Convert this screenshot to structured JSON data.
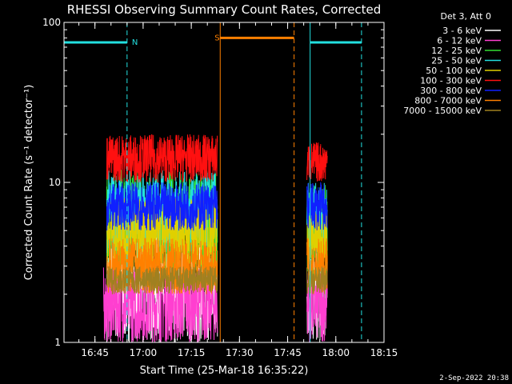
{
  "chart_data": {
    "type": "line",
    "title": "RHESSI Observing Summary Count Rates, Corrected",
    "xlabel": "Start Time (25-Mar-18 16:35:22)",
    "ylabel": "Corrected Count Rate (s⁻¹ detector⁻¹)",
    "yscale": "log",
    "ylim": [
      1,
      100
    ],
    "xlim": [
      "16:35:22",
      "18:15:00"
    ],
    "x_ticks": [
      "16:45",
      "17:00",
      "17:15",
      "17:30",
      "17:45",
      "18:00",
      "18:15"
    ],
    "y_ticks": [
      "1",
      "10",
      "100"
    ],
    "grid": false,
    "legend_position": "outside-right",
    "legend_title": "Det 3, Att 0",
    "series": [
      {
        "name": "3 - 6 keV",
        "color": "#ffffff",
        "segments": [
          {
            "x_start": "16:48:40",
            "x_end": "17:23:10",
            "y_min": 1.0,
            "y_max": 5.0
          },
          {
            "x_start": "17:51:00",
            "x_end": "17:57:20",
            "y_min": 1.0,
            "y_max": 4.0
          }
        ]
      },
      {
        "name": "6 - 12 keV",
        "color": "#ff3fd0",
        "segments": [
          {
            "x_start": "16:47:40",
            "x_end": "17:23:10",
            "y_min": 1.0,
            "y_max": 3.0
          },
          {
            "x_start": "17:51:00",
            "x_end": "17:57:20",
            "y_min": 1.0,
            "y_max": 3.0
          }
        ]
      },
      {
        "name": "12 - 25 keV",
        "color": "#33dd33",
        "segments": [
          {
            "x_start": "16:48:40",
            "x_end": "17:23:10",
            "y_min": 2.5,
            "y_max": 12.0
          },
          {
            "x_start": "17:51:00",
            "x_end": "17:57:20",
            "y_min": 2.5,
            "y_max": 10.0
          }
        ]
      },
      {
        "name": "25 - 50 keV",
        "color": "#22e0e0",
        "segments": [
          {
            "x_start": "16:48:40",
            "x_end": "17:23:10",
            "y_min": 3.5,
            "y_max": 12.0
          },
          {
            "x_start": "17:51:00",
            "x_end": "17:57:20",
            "y_min": 3.5,
            "y_max": 10.0
          }
        ]
      },
      {
        "name": "50 - 100 keV",
        "color": "#e0d000",
        "segments": [
          {
            "x_start": "16:48:40",
            "x_end": "17:23:10",
            "y_min": 3.0,
            "y_max": 8.0
          },
          {
            "x_start": "17:51:00",
            "x_end": "17:57:20",
            "y_min": 3.0,
            "y_max": 7.0
          }
        ]
      },
      {
        "name": "100 - 300 keV",
        "color": "#ff1010",
        "segments": [
          {
            "x_start": "16:48:40",
            "x_end": "17:23:10",
            "y_min": 10.0,
            "y_max": 20.0
          },
          {
            "x_start": "17:51:00",
            "x_end": "17:57:20",
            "y_min": 10.0,
            "y_max": 18.0
          }
        ]
      },
      {
        "name": "300 - 800 keV",
        "color": "#1020ff",
        "segments": [
          {
            "x_start": "16:48:40",
            "x_end": "17:23:10",
            "y_min": 5.0,
            "y_max": 10.0
          },
          {
            "x_start": "17:51:00",
            "x_end": "17:57:20",
            "y_min": 5.0,
            "y_max": 10.0
          }
        ]
      },
      {
        "name": "800 - 7000 keV",
        "color": "#ff8000",
        "segments": [
          {
            "x_start": "16:48:40",
            "x_end": "17:23:10",
            "y_min": 2.0,
            "y_max": 4.5
          },
          {
            "x_start": "17:51:00",
            "x_end": "17:57:20",
            "y_min": 2.0,
            "y_max": 4.5
          }
        ]
      },
      {
        "name": "7000 - 15000 keV",
        "color": "#a08020",
        "segments": [
          {
            "x_start": "16:48:40",
            "x_end": "17:23:10",
            "y_min": 2.0,
            "y_max": 3.0
          },
          {
            "x_start": "17:51:00",
            "x_end": "17:57:20",
            "y_min": 2.0,
            "y_max": 3.0
          }
        ]
      }
    ],
    "annotations": [
      {
        "label": "N",
        "color": "#22e0e0",
        "kind": "night",
        "intervals": [
          {
            "start": "16:35:22",
            "end": "16:55:00"
          },
          {
            "start": "17:52:00",
            "end": "18:08:00"
          }
        ],
        "y": 75
      },
      {
        "label": "S",
        "color": "#ff8000",
        "kind": "saa",
        "intervals": [
          {
            "start": "17:24:00",
            "end": "17:47:00"
          }
        ],
        "y": 80
      }
    ]
  },
  "footer": {
    "date": "2-Sep-2022 20:38"
  }
}
